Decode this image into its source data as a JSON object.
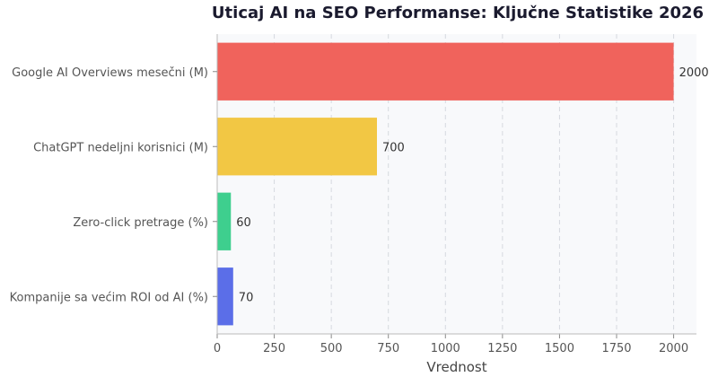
{
  "chart_data": {
    "type": "bar",
    "orientation": "horizontal",
    "title": "Uticaj AI na SEO Performanse: Ključne Statistike 2026",
    "xlabel": "Vrednost",
    "ylabel": "",
    "categories": [
      "Google AI Overviews mesečni (M)",
      "ChatGPT nedeljni korisnici (M)",
      "Zero-click pretrage (%)",
      "Kompanije sa većim ROI od AI (%)"
    ],
    "values": [
      2000,
      700,
      60,
      70
    ],
    "value_labels": [
      "2000",
      "700",
      "60",
      "70"
    ],
    "colors": [
      "#f0635c",
      "#f2c744",
      "#3ecf8e",
      "#5b6ee8"
    ],
    "xlim": [
      0,
      2100
    ],
    "xticks": [
      0,
      250,
      500,
      750,
      1000,
      1250,
      1500,
      1750,
      2000
    ],
    "xtick_labels": [
      "0",
      "250",
      "500",
      "750",
      "1000",
      "1250",
      "1500",
      "1750",
      "2000"
    ],
    "grid": "vertical-dashed",
    "plot_background": "#f8f9fb"
  }
}
